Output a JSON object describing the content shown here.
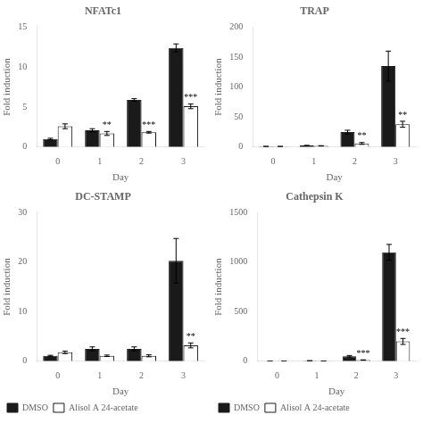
{
  "chart_data": [
    {
      "type": "bar",
      "title": "NFATc1",
      "xlabel": "Day",
      "ylabel": "Fold induction",
      "categories": [
        0,
        1,
        2,
        3
      ],
      "series": [
        {
          "name": "DMSO",
          "color": "#1a1a1a",
          "values": [
            1.0,
            2.1,
            5.9,
            12.4
          ],
          "errors": [
            0.1,
            0.2,
            0.15,
            0.5
          ]
        },
        {
          "name": "Alisol A 24-acetate",
          "color": "#ffffff",
          "values": [
            2.6,
            1.7,
            1.85,
            5.1
          ],
          "errors": [
            0.3,
            0.25,
            0.1,
            0.3
          ]
        }
      ],
      "ylim": [
        0,
        15
      ],
      "yticks": [
        0,
        5,
        10,
        15
      ],
      "grid": false,
      "annotations": [
        {
          "text": "**",
          "category": 1,
          "series": "Alisol A 24-acetate"
        },
        {
          "text": "***",
          "category": 2,
          "series": "Alisol A 24-acetate"
        },
        {
          "text": "***",
          "category": 3,
          "series": "Alisol A 24-acetate"
        }
      ]
    },
    {
      "type": "bar",
      "title": "TRAP",
      "xlabel": "Day",
      "ylabel": "Fold induction",
      "categories": [
        0,
        1,
        2,
        3
      ],
      "series": [
        {
          "name": "DMSO",
          "color": "#1a1a1a",
          "values": [
            1.0,
            2.5,
            25.0,
            135.0
          ],
          "errors": [
            0.2,
            0.3,
            3.0,
            25.0
          ]
        },
        {
          "name": "Alisol A 24-acetate",
          "color": "#ffffff",
          "values": [
            1.0,
            2.0,
            6.0,
            38.0
          ],
          "errors": [
            0.2,
            0.3,
            1.5,
            5.0
          ]
        }
      ],
      "ylim": [
        0,
        200
      ],
      "yticks": [
        0,
        50,
        100,
        150,
        200
      ],
      "grid": false,
      "annotations": [
        {
          "text": "**",
          "category": 2,
          "series": "Alisol A 24-acetate"
        },
        {
          "text": "**",
          "category": 3,
          "series": "Alisol A 24-acetate"
        }
      ]
    },
    {
      "type": "bar",
      "title": "DC-STAMP",
      "xlabel": "Day",
      "ylabel": "Fold induction",
      "categories": [
        0,
        1,
        2,
        3
      ],
      "series": [
        {
          "name": "DMSO",
          "color": "#1a1a1a",
          "values": [
            1.1,
            2.5,
            2.5,
            20.3
          ],
          "errors": [
            0.1,
            0.4,
            0.4,
            4.5
          ]
        },
        {
          "name": "Alisol A 24-acetate",
          "color": "#ffffff",
          "values": [
            1.8,
            1.1,
            1.1,
            3.2
          ],
          "errors": [
            0.25,
            0.15,
            0.2,
            0.5
          ]
        }
      ],
      "ylim": [
        0,
        30
      ],
      "yticks": [
        0,
        10,
        20,
        30
      ],
      "grid": false,
      "legend": "bottom",
      "annotations": [
        {
          "text": "**",
          "category": 3,
          "series": "Alisol A 24-acetate"
        }
      ]
    },
    {
      "type": "bar",
      "title": "Cathepsin K",
      "xlabel": "Day",
      "ylabel": "Fold induction",
      "categories": [
        0,
        1,
        2,
        3
      ],
      "series": [
        {
          "name": "DMSO",
          "color": "#1a1a1a",
          "values": [
            1.0,
            5.0,
            50.0,
            1100.0
          ],
          "errors": [
            0.2,
            0.5,
            8.0,
            80.0
          ]
        },
        {
          "name": "Alisol A 24-acetate",
          "color": "#ffffff",
          "values": [
            1.0,
            2.0,
            12.0,
            200.0
          ],
          "errors": [
            0.2,
            0.3,
            2.0,
            30.0
          ]
        }
      ],
      "ylim": [
        0,
        1500
      ],
      "yticks": [
        0,
        500,
        1000,
        1500
      ],
      "grid": false,
      "legend": "bottom",
      "annotations": [
        {
          "text": "***",
          "category": 2,
          "series": "Alisol A 24-acetate"
        },
        {
          "text": "***",
          "category": 3,
          "series": "Alisol A 24-acetate"
        }
      ]
    }
  ]
}
